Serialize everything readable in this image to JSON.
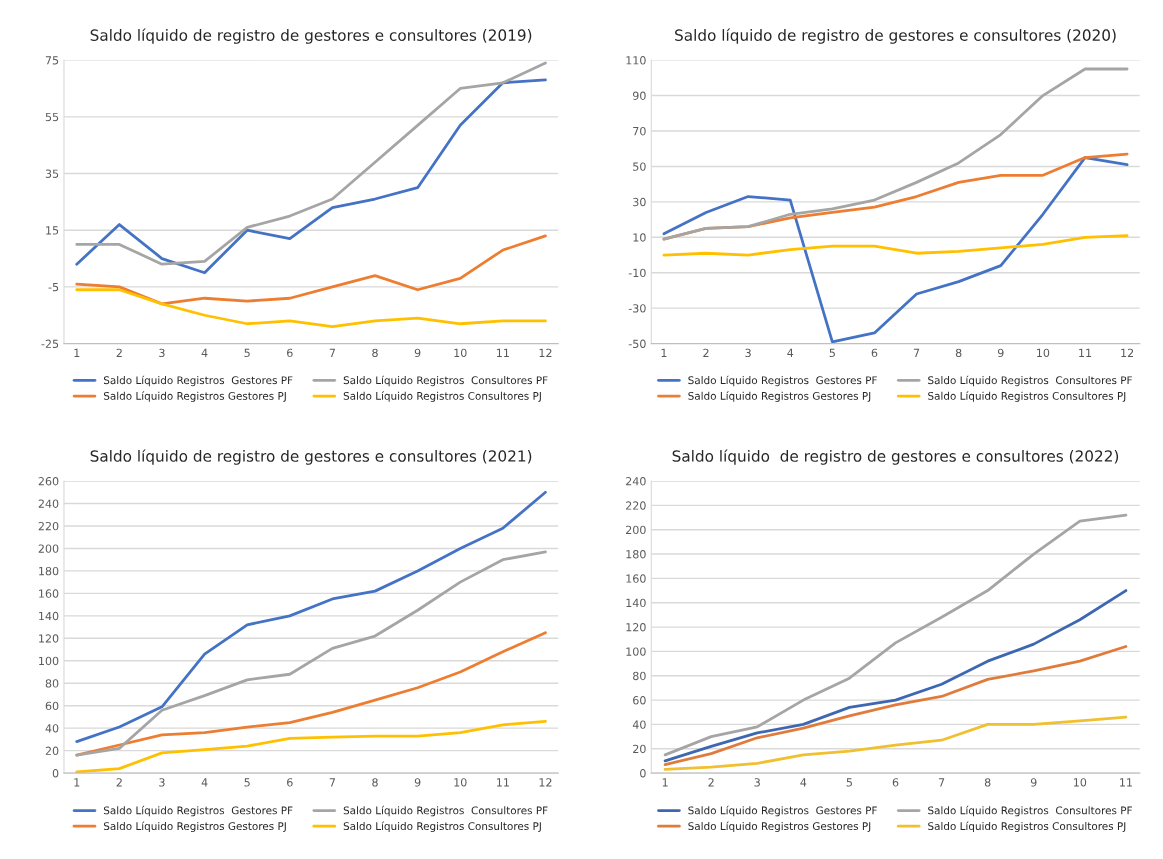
{
  "chart_data": [
    {
      "type": "line",
      "title": "Saldo líquido de registro de gestores e consultores (2019)",
      "categories": [
        "1",
        "2",
        "3",
        "4",
        "5",
        "6",
        "7",
        "8",
        "9",
        "10",
        "11",
        "12"
      ],
      "ylim": [
        -25,
        75
      ],
      "yticks": [
        -25,
        -5,
        15,
        35,
        55,
        75
      ],
      "grid": "y",
      "legend": "bottom",
      "series": [
        {
          "name": "Saldo Líquido Registros  Gestores PF",
          "color": "#4472c4",
          "values": [
            3,
            17,
            5,
            0,
            15,
            12,
            23,
            26,
            30,
            52,
            67,
            68
          ]
        },
        {
          "name": "Saldo Líquido Registros Gestores PJ",
          "color": "#ed7d31",
          "values": [
            -4,
            -5,
            -11,
            -9,
            -10,
            -9,
            -5,
            -1,
            -6,
            -2,
            8,
            13
          ]
        },
        {
          "name": "Saldo Líquido Registros  Consultores PF",
          "color": "#a5a5a5",
          "values": [
            10,
            10,
            3,
            4,
            16,
            20,
            26,
            39,
            52,
            65,
            67,
            74
          ]
        },
        {
          "name": "Saldo Líquido Registros Consultores PJ",
          "color": "#ffc000",
          "values": [
            -6,
            -6,
            -11,
            -15,
            -18,
            -17,
            -19,
            -17,
            -16,
            -18,
            -17,
            -17
          ]
        }
      ]
    },
    {
      "type": "line",
      "title": "Saldo líquido de registro de gestores e consultores (2020)",
      "categories": [
        "1",
        "2",
        "3",
        "4",
        "5",
        "6",
        "7",
        "8",
        "9",
        "10",
        "11",
        "12"
      ],
      "ylim": [
        -50,
        110
      ],
      "yticks": [
        -50,
        -30,
        -10,
        10,
        30,
        50,
        70,
        90,
        110
      ],
      "grid": "y",
      "legend": "bottom",
      "series": [
        {
          "name": "Saldo Líquido Registros  Gestores PF",
          "color": "#4472c4",
          "values": [
            12,
            24,
            33,
            31,
            -49,
            -44,
            -22,
            -15,
            -6,
            23,
            55,
            51
          ]
        },
        {
          "name": "Saldo Líquido Registros Gestores PJ",
          "color": "#ed7d31",
          "values": [
            9,
            15,
            16,
            21,
            24,
            27,
            33,
            41,
            45,
            45,
            55,
            57
          ]
        },
        {
          "name": "Saldo Líquido Registros  Consultores PF",
          "color": "#a5a5a5",
          "values": [
            9,
            15,
            16,
            23,
            26,
            31,
            41,
            52,
            68,
            90,
            105,
            105
          ]
        },
        {
          "name": "Saldo Líquido Registros Consultores PJ",
          "color": "#ffc000",
          "values": [
            0,
            1,
            0,
            3,
            5,
            5,
            1,
            2,
            4,
            6,
            10,
            11
          ]
        }
      ]
    },
    {
      "type": "line",
      "title": "Saldo líquido de registro de gestores e consultores (2021)",
      "categories": [
        "1",
        "2",
        "3",
        "4",
        "5",
        "6",
        "7",
        "8",
        "9",
        "10",
        "11",
        "12"
      ],
      "ylim": [
        0,
        260
      ],
      "yticks": [
        0,
        20,
        40,
        60,
        80,
        100,
        120,
        140,
        160,
        180,
        200,
        220,
        240,
        260
      ],
      "grid": "y",
      "legend": "bottom",
      "series": [
        {
          "name": "Saldo Líquido Registros  Gestores PF",
          "color": "#4472c4",
          "values": [
            28,
            41,
            59,
            106,
            132,
            140,
            155,
            162,
            180,
            200,
            218,
            250
          ]
        },
        {
          "name": "Saldo Líquido Registros Gestores PJ",
          "color": "#ed7d31",
          "values": [
            16,
            25,
            34,
            36,
            41,
            45,
            54,
            65,
            76,
            90,
            108,
            125
          ]
        },
        {
          "name": "Saldo Líquido Registros  Consultores PF",
          "color": "#a5a5a5",
          "values": [
            16,
            22,
            56,
            69,
            83,
            88,
            111,
            122,
            145,
            170,
            190,
            197
          ]
        },
        {
          "name": "Saldo Líquido Registros Consultores PJ",
          "color": "#ffc000",
          "values": [
            1,
            4,
            18,
            21,
            24,
            31,
            32,
            33,
            33,
            36,
            43,
            46
          ]
        }
      ]
    },
    {
      "type": "line",
      "title": "Saldo líquido  de registro de gestores e consultores (2022)",
      "categories": [
        "1",
        "2",
        "3",
        "4",
        "5",
        "6",
        "7",
        "8",
        "9",
        "10",
        "11"
      ],
      "ylim": [
        0,
        240
      ],
      "yticks": [
        0,
        20,
        40,
        60,
        80,
        100,
        120,
        140,
        160,
        180,
        200,
        220,
        240
      ],
      "grid": "y",
      "legend": "bottom",
      "series": [
        {
          "name": "Saldo Líquido Registros  Gestores PF",
          "color": "#3e67b1",
          "values": [
            10,
            22,
            33,
            40,
            54,
            60,
            73,
            92,
            106,
            126,
            150
          ]
        },
        {
          "name": "Saldo Líquido Registros Gestores PJ",
          "color": "#e07b3c",
          "values": [
            7,
            16,
            29,
            37,
            47,
            56,
            63,
            77,
            84,
            92,
            104
          ]
        },
        {
          "name": "Saldo Líquido Registros  Consultores PF",
          "color": "#a5a5a5",
          "values": [
            15,
            30,
            38,
            60,
            78,
            107,
            128,
            150,
            180,
            207,
            212
          ]
        },
        {
          "name": "Saldo Líquido Registros Consultores PJ",
          "color": "#f0c030",
          "values": [
            3,
            5,
            8,
            15,
            18,
            23,
            27,
            40,
            40,
            43,
            46
          ]
        }
      ]
    }
  ]
}
